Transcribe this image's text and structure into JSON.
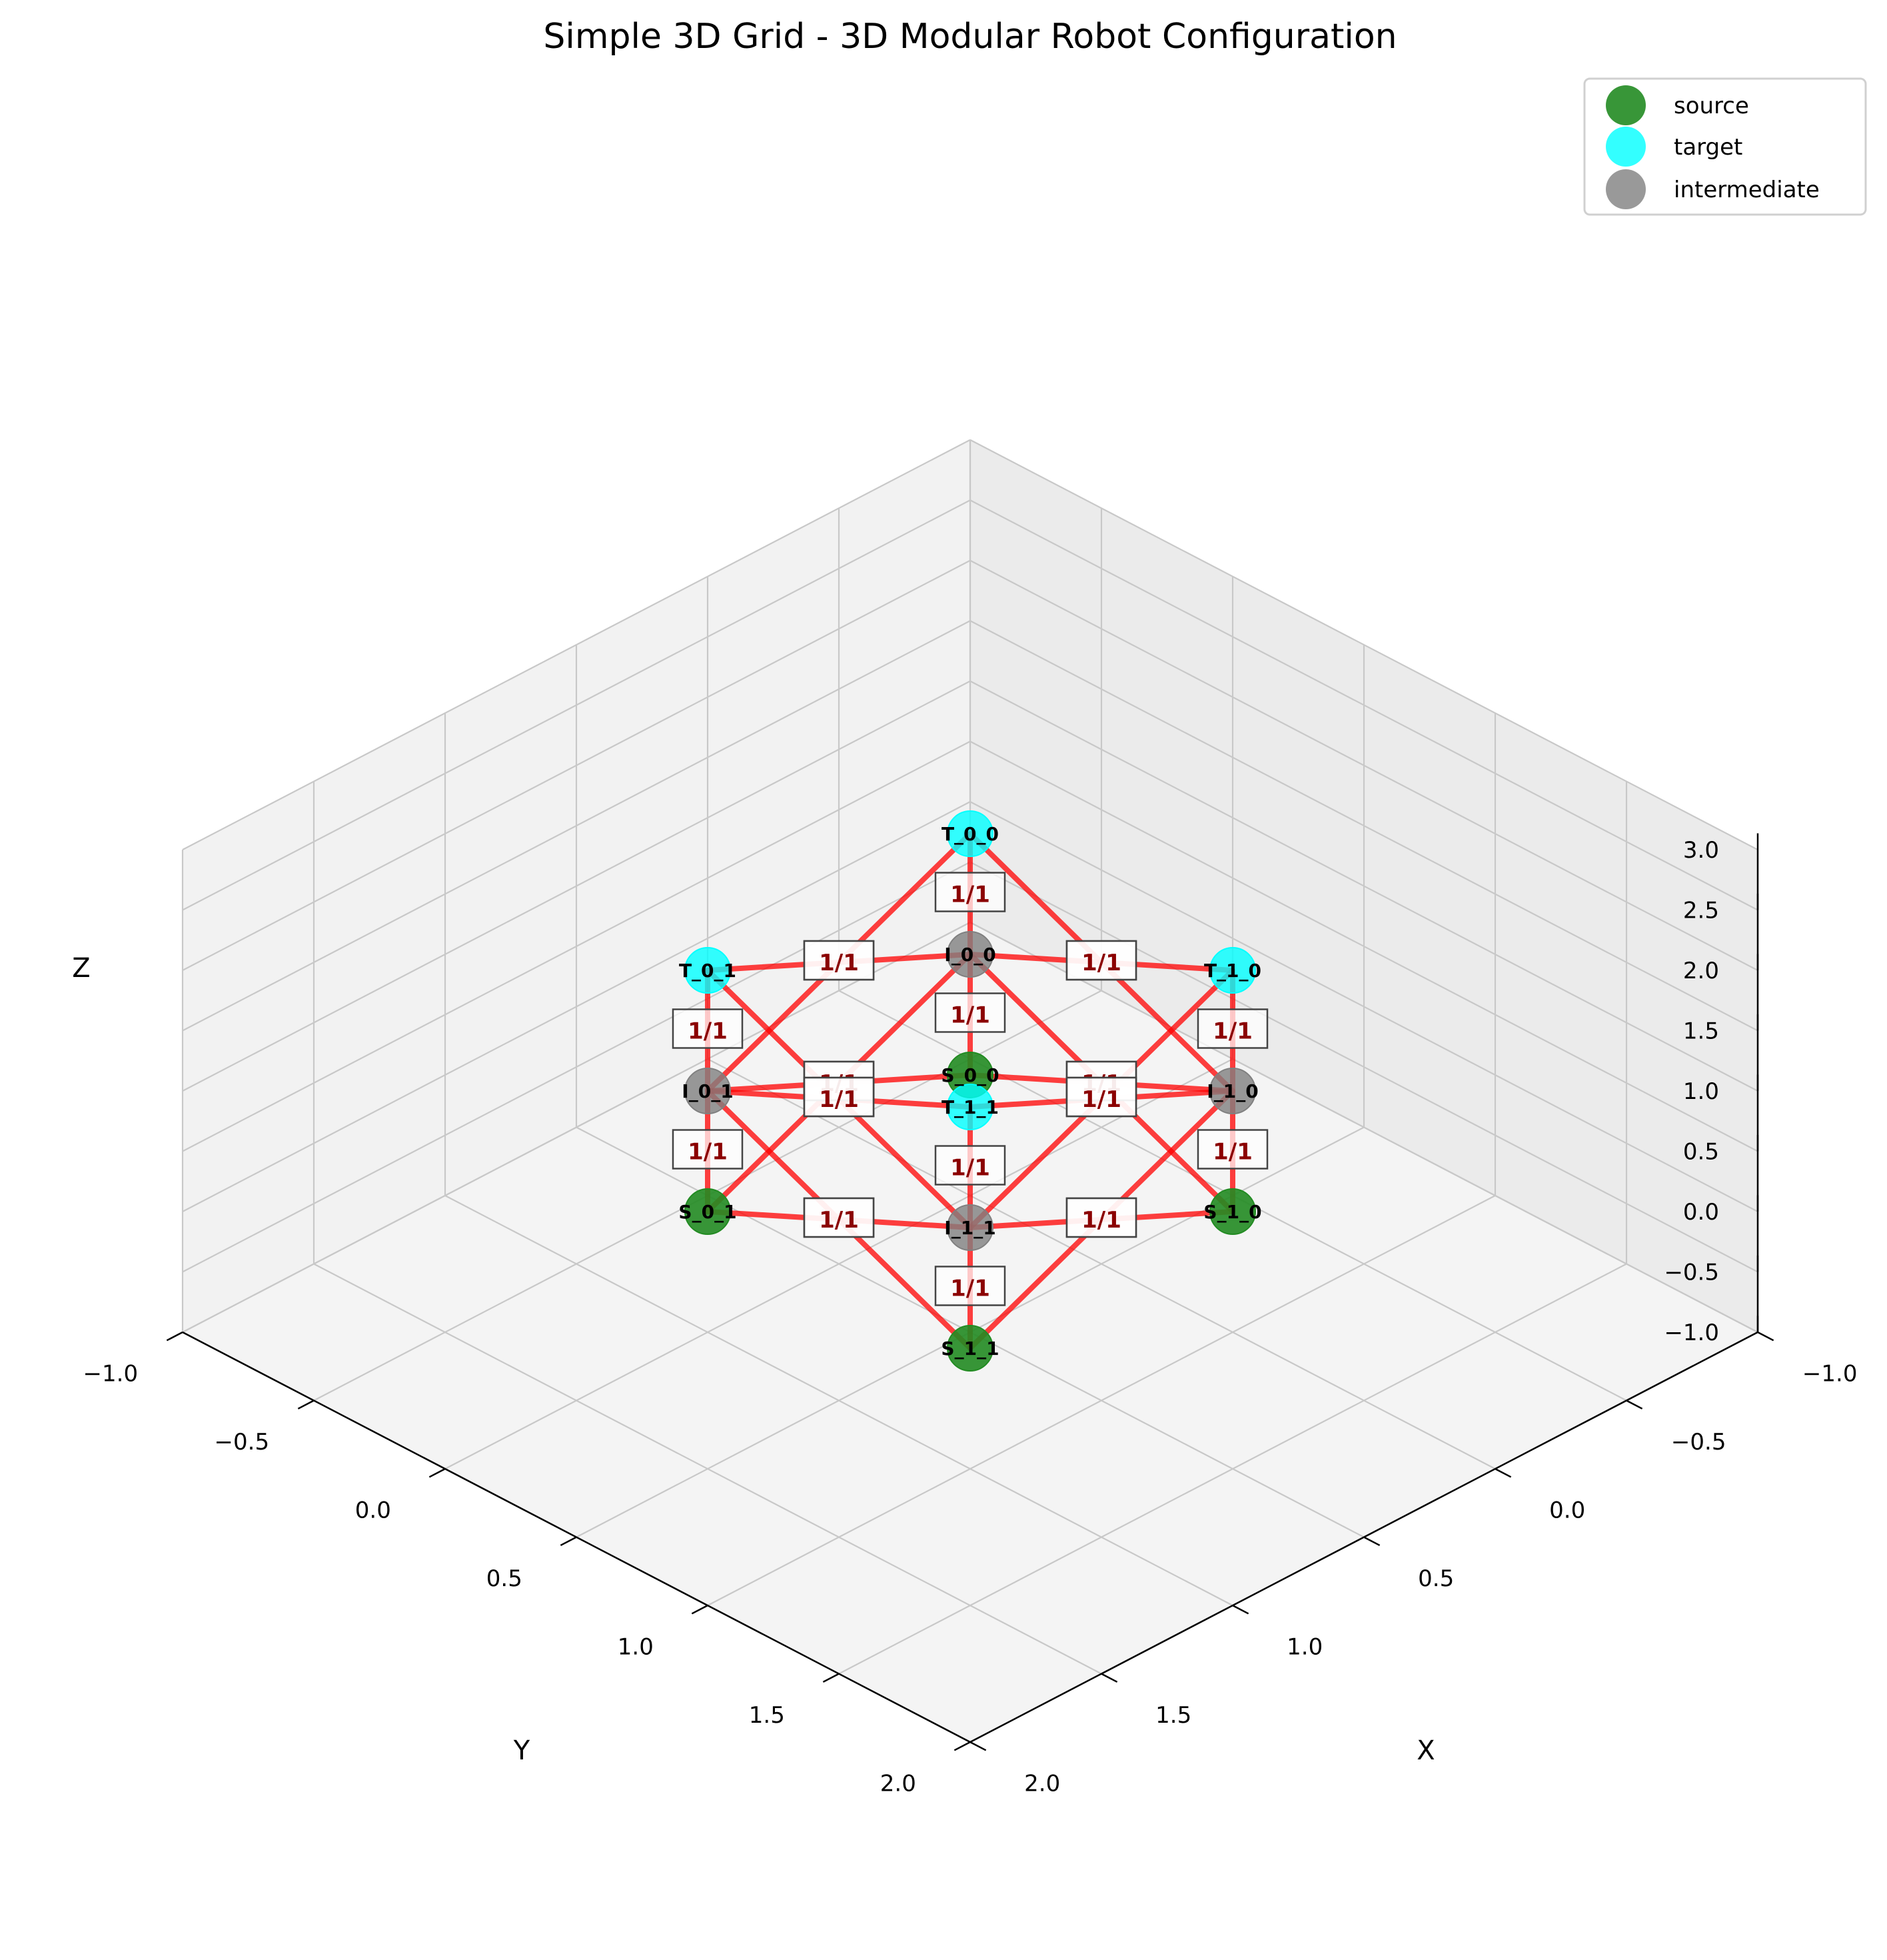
{
  "chart_data": {
    "type": "scatter",
    "subtype": "3d-network",
    "title": "Simple 3D Grid - 3D Modular Robot Configuration",
    "xlabel": "X",
    "ylabel": "Y",
    "zlabel": "Z",
    "xlim": [
      -1.0,
      2.0
    ],
    "ylim": [
      -1.0,
      2.0
    ],
    "zlim": [
      -1.0,
      3.0
    ],
    "x_ticks": [
      "−1.0",
      "−0.5",
      "0.0",
      "0.5",
      "1.0",
      "1.5",
      "2.0"
    ],
    "y_ticks": [
      "−1.0",
      "−0.5",
      "0.0",
      "0.5",
      "1.0",
      "1.5",
      "2.0"
    ],
    "z_ticks": [
      "−1.0",
      "−0.5",
      "0.0",
      "0.5",
      "1.0",
      "1.5",
      "2.0",
      "2.5",
      "3.0"
    ],
    "grid": true,
    "legend_position": "top-right",
    "legend": [
      {
        "label": "source",
        "color": "#228b22"
      },
      {
        "label": "target",
        "color": "#00ffff"
      },
      {
        "label": "intermediate",
        "color": "#808080"
      }
    ],
    "nodes": [
      {
        "id": "S_0_0",
        "type": "source",
        "x": 0,
        "y": 0,
        "z": 0
      },
      {
        "id": "S_0_1",
        "type": "source",
        "x": 0,
        "y": 1,
        "z": 0
      },
      {
        "id": "S_1_0",
        "type": "source",
        "x": 1,
        "y": 0,
        "z": 0
      },
      {
        "id": "S_1_1",
        "type": "source",
        "x": 1,
        "y": 1,
        "z": 0
      },
      {
        "id": "I_0_0",
        "type": "intermediate",
        "x": 0,
        "y": 0,
        "z": 1
      },
      {
        "id": "I_0_1",
        "type": "intermediate",
        "x": 0,
        "y": 1,
        "z": 1
      },
      {
        "id": "I_1_0",
        "type": "intermediate",
        "x": 1,
        "y": 0,
        "z": 1
      },
      {
        "id": "I_1_1",
        "type": "intermediate",
        "x": 1,
        "y": 1,
        "z": 1
      },
      {
        "id": "T_0_0",
        "type": "target",
        "x": 0,
        "y": 0,
        "z": 2
      },
      {
        "id": "T_0_1",
        "type": "target",
        "x": 0,
        "y": 1,
        "z": 2
      },
      {
        "id": "T_1_0",
        "type": "target",
        "x": 1,
        "y": 0,
        "z": 2
      },
      {
        "id": "T_1_1",
        "type": "target",
        "x": 1,
        "y": 1,
        "z": 2
      }
    ],
    "edges": [
      {
        "from": "S_1_0",
        "to": "I_1_0",
        "label": "1/1"
      },
      {
        "from": "S_1_0",
        "to": "I_1_1",
        "label": "1/1"
      },
      {
        "from": "S_1_0",
        "to": "I_0_0",
        "label": "1/1"
      },
      {
        "from": "S_0_1",
        "to": "I_0_1",
        "label": "1/1"
      },
      {
        "from": "S_0_1",
        "to": "I_1_1",
        "label": "1/1"
      },
      {
        "from": "S_0_1",
        "to": "I_0_0",
        "label": "1/1"
      },
      {
        "from": "S_1_1",
        "to": "I_1_1",
        "label": "1/1"
      },
      {
        "from": "S_1_1",
        "to": "I_1_0",
        "label": "1/1"
      },
      {
        "from": "S_1_1",
        "to": "I_0_1",
        "label": "1/1"
      },
      {
        "from": "S_0_0",
        "to": "I_0_0",
        "label": "1/1"
      },
      {
        "from": "S_0_0",
        "to": "I_1_0",
        "label": "1/1"
      },
      {
        "from": "S_0_0",
        "to": "I_0_1",
        "label": "1/1"
      },
      {
        "from": "I_1_0",
        "to": "T_1_0",
        "label": "1/1"
      },
      {
        "from": "I_1_0",
        "to": "T_1_1",
        "label": "1/1"
      },
      {
        "from": "I_1_0",
        "to": "T_0_0",
        "label": "1/1"
      },
      {
        "from": "I_0_1",
        "to": "T_0_1",
        "label": "1/1"
      },
      {
        "from": "I_0_1",
        "to": "T_1_1",
        "label": "1/1"
      },
      {
        "from": "I_0_1",
        "to": "T_0_0",
        "label": "1/1"
      },
      {
        "from": "I_1_1",
        "to": "T_1_1",
        "label": "1/1"
      },
      {
        "from": "I_1_1",
        "to": "T_1_0",
        "label": "1/1"
      },
      {
        "from": "I_1_1",
        "to": "T_0_1",
        "label": "1/1"
      },
      {
        "from": "I_0_0",
        "to": "T_0_0",
        "label": "1/1"
      },
      {
        "from": "I_0_0",
        "to": "T_1_0",
        "label": "1/1"
      },
      {
        "from": "I_0_0",
        "to": "T_0_1",
        "label": "1/1"
      }
    ],
    "edge_color": "#ff0000",
    "node_colors": {
      "source": "#228b22",
      "target": "#00ffff",
      "intermediate": "#808080"
    }
  }
}
